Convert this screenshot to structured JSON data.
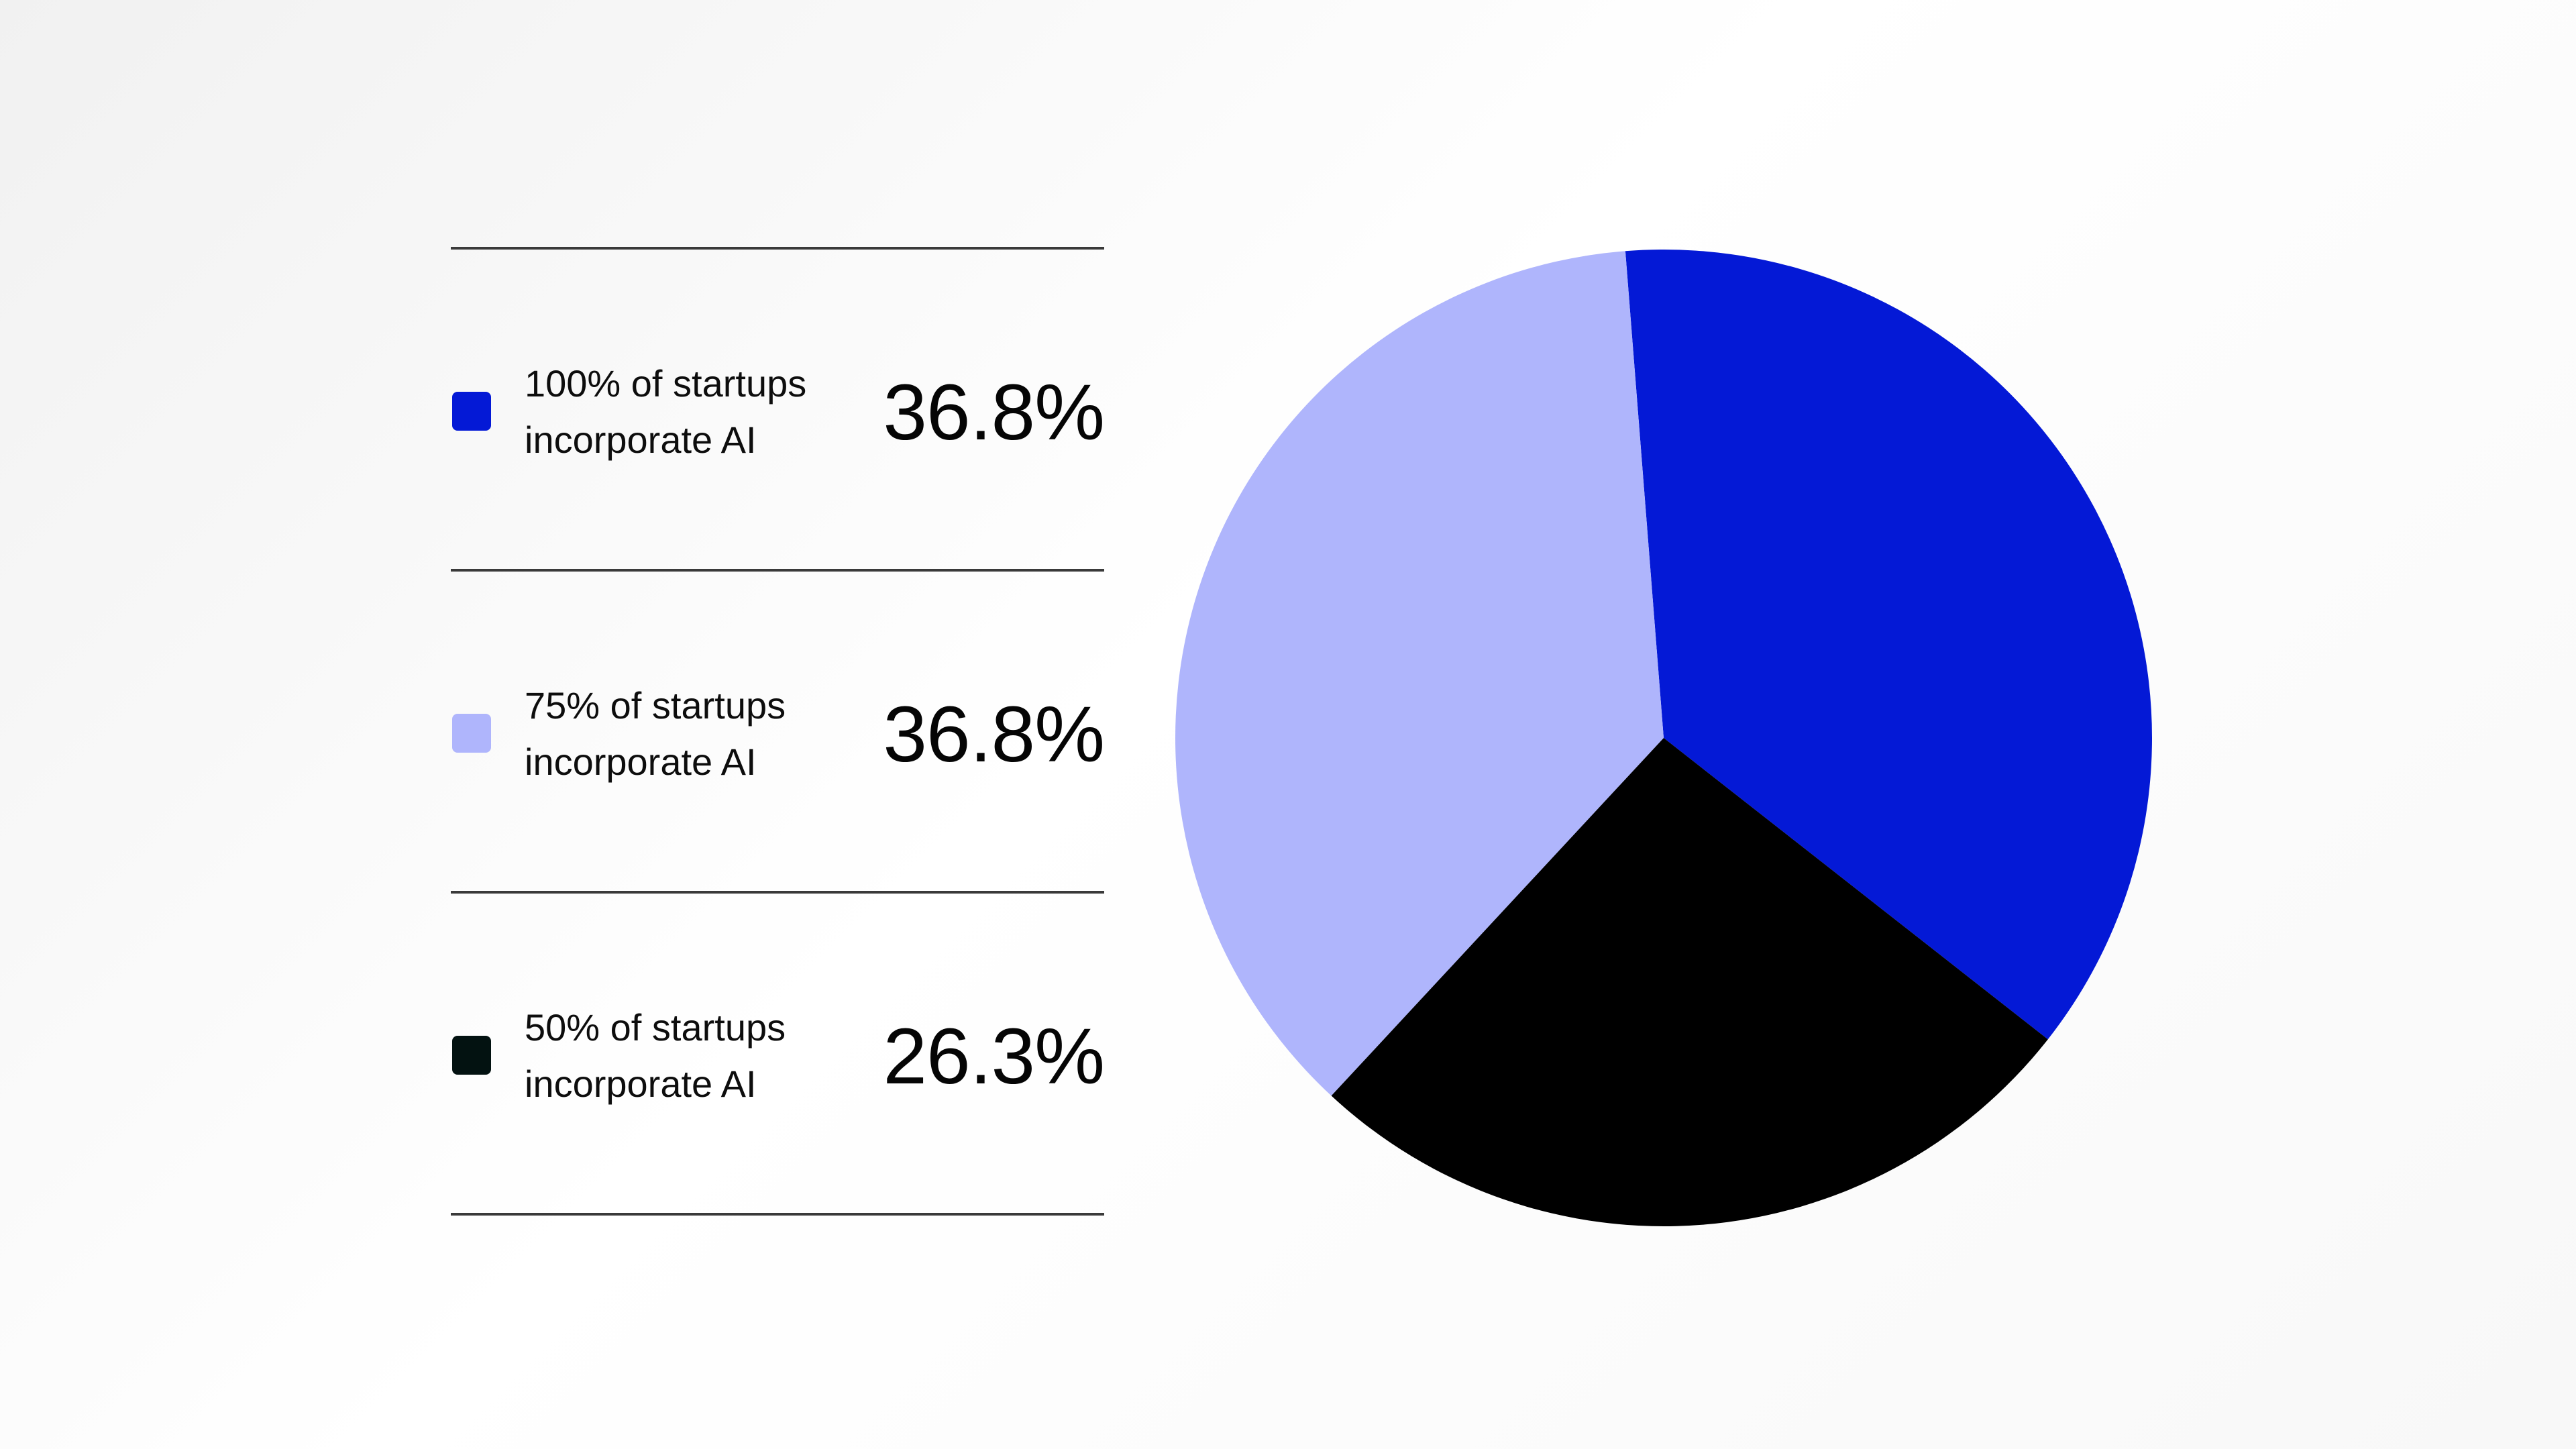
{
  "chart_data": {
    "type": "pie",
    "title": "",
    "slices": [
      {
        "label": "100% of startups incorporate AI",
        "value": 36.8,
        "display": "36.8%",
        "color": "#0419d6"
      },
      {
        "label": "75% of startups incorporate AI",
        "value": 36.8,
        "display": "36.8%",
        "color": "#afb5fc"
      },
      {
        "label": "50% of startups incorporate AI",
        "value": 26.3,
        "display": "26.3%",
        "color": "#000000"
      }
    ],
    "start_angle_deg": -4.5,
    "direction": "clockwise",
    "slice_order": [
      0,
      2,
      1
    ],
    "legend_position": "left"
  },
  "legend": {
    "items": [
      {
        "label": "100% of startups incorporate AI",
        "value": "36.8%",
        "swatch_color": "#0419d6"
      },
      {
        "label": "75% of startups incorporate AI",
        "value": "36.8%",
        "swatch_color": "#afb5fc"
      },
      {
        "label": "50% of startups incorporate AI",
        "value": "26.3%",
        "swatch_color": "#031211"
      }
    ]
  }
}
